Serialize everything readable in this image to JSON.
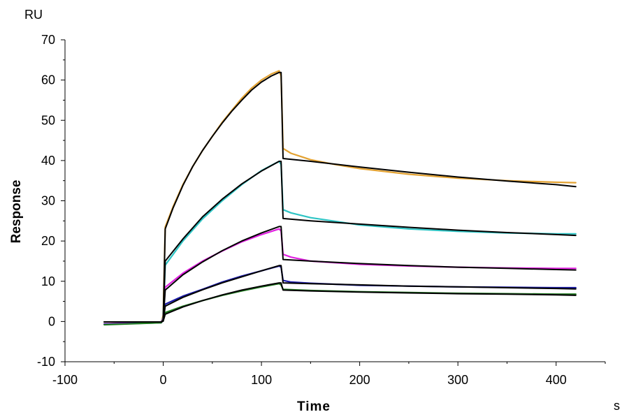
{
  "chart_data": {
    "type": "line",
    "title": "",
    "xlabel": "Time",
    "ylabel": "Response",
    "x_unit": "s",
    "y_unit": "RU",
    "xlim": [
      -100,
      450
    ],
    "ylim": [
      -10,
      70
    ],
    "x_ticks": [
      -100,
      0,
      100,
      200,
      300,
      400
    ],
    "y_ticks": [
      -10,
      0,
      10,
      20,
      30,
      40,
      50,
      60,
      70
    ],
    "grid": false,
    "legend": "none",
    "series": [
      {
        "color": "#E3A232",
        "role": "measured",
        "points": [
          [
            -60,
            -0.6
          ],
          [
            -40,
            -0.4
          ],
          [
            -20,
            -0.3
          ],
          [
            -2,
            -0.2
          ],
          [
            0,
            1.5
          ],
          [
            2,
            23.5
          ],
          [
            10,
            28.5
          ],
          [
            20,
            34
          ],
          [
            30,
            38.5
          ],
          [
            40,
            42.5
          ],
          [
            50,
            46
          ],
          [
            60,
            49.5
          ],
          [
            70,
            52.5
          ],
          [
            80,
            55.5
          ],
          [
            90,
            58
          ],
          [
            100,
            60
          ],
          [
            110,
            61.5
          ],
          [
            118,
            62.3
          ],
          [
            120,
            61
          ],
          [
            122,
            43
          ],
          [
            130,
            41.8
          ],
          [
            140,
            41
          ],
          [
            150,
            40.2
          ],
          [
            175,
            39
          ],
          [
            200,
            38
          ],
          [
            250,
            36.6
          ],
          [
            300,
            35.6
          ],
          [
            350,
            35
          ],
          [
            400,
            34.6
          ],
          [
            420,
            34.5
          ]
        ]
      },
      {
        "color": "#000000",
        "role": "fit",
        "points": [
          [
            -60,
            -0.1
          ],
          [
            -2,
            -0.1
          ],
          [
            0,
            0.2
          ],
          [
            2,
            23
          ],
          [
            10,
            28.2
          ],
          [
            20,
            33.8
          ],
          [
            30,
            38.5
          ],
          [
            40,
            42.5
          ],
          [
            50,
            46
          ],
          [
            60,
            49.3
          ],
          [
            70,
            52.3
          ],
          [
            80,
            55
          ],
          [
            90,
            57.5
          ],
          [
            100,
            59.5
          ],
          [
            110,
            61
          ],
          [
            118,
            61.9
          ],
          [
            120,
            61.9
          ],
          [
            122,
            40.5
          ],
          [
            150,
            39.8
          ],
          [
            200,
            38.4
          ],
          [
            250,
            37.1
          ],
          [
            300,
            35.9
          ],
          [
            350,
            34.9
          ],
          [
            400,
            34
          ],
          [
            420,
            33.5
          ]
        ]
      },
      {
        "color": "#2EC4C4",
        "role": "measured",
        "points": [
          [
            -60,
            -0.6
          ],
          [
            -2,
            -0.2
          ],
          [
            0,
            1
          ],
          [
            2,
            14
          ],
          [
            20,
            20
          ],
          [
            40,
            25.5
          ],
          [
            60,
            30
          ],
          [
            80,
            34
          ],
          [
            100,
            37.5
          ],
          [
            118,
            39.8
          ],
          [
            120,
            39
          ],
          [
            122,
            27.8
          ],
          [
            130,
            27
          ],
          [
            150,
            25.8
          ],
          [
            200,
            24
          ],
          [
            250,
            23
          ],
          [
            300,
            22.4
          ],
          [
            350,
            22
          ],
          [
            400,
            21.8
          ],
          [
            420,
            21.8
          ]
        ]
      },
      {
        "color": "#000000",
        "role": "fit",
        "points": [
          [
            -60,
            -0.1
          ],
          [
            -2,
            -0.1
          ],
          [
            0,
            0.2
          ],
          [
            2,
            15
          ],
          [
            20,
            20.5
          ],
          [
            40,
            26
          ],
          [
            60,
            30.4
          ],
          [
            80,
            34.2
          ],
          [
            100,
            37.4
          ],
          [
            118,
            39.8
          ],
          [
            120,
            39.8
          ],
          [
            122,
            25.6
          ],
          [
            150,
            25
          ],
          [
            200,
            24.2
          ],
          [
            250,
            23.4
          ],
          [
            300,
            22.7
          ],
          [
            350,
            22.1
          ],
          [
            400,
            21.6
          ],
          [
            420,
            21.4
          ]
        ]
      },
      {
        "color": "#E020E0",
        "role": "measured",
        "points": [
          [
            -60,
            -0.6
          ],
          [
            -2,
            -0.2
          ],
          [
            0,
            0.8
          ],
          [
            2,
            8.5
          ],
          [
            20,
            12
          ],
          [
            40,
            15
          ],
          [
            60,
            17.5
          ],
          [
            80,
            19.8
          ],
          [
            100,
            21.6
          ],
          [
            118,
            23
          ],
          [
            120,
            22.5
          ],
          [
            122,
            16.7
          ],
          [
            130,
            16
          ],
          [
            150,
            15
          ],
          [
            200,
            14.2
          ],
          [
            250,
            13.8
          ],
          [
            300,
            13.5
          ],
          [
            350,
            13.3
          ],
          [
            400,
            13.2
          ],
          [
            420,
            13.2
          ]
        ]
      },
      {
        "color": "#000000",
        "role": "fit",
        "points": [
          [
            -60,
            -0.1
          ],
          [
            -2,
            -0.1
          ],
          [
            0,
            0.1
          ],
          [
            2,
            7.8
          ],
          [
            20,
            11.6
          ],
          [
            40,
            14.8
          ],
          [
            60,
            17.6
          ],
          [
            80,
            20
          ],
          [
            100,
            22
          ],
          [
            118,
            23.6
          ],
          [
            120,
            23.6
          ],
          [
            122,
            15.4
          ],
          [
            150,
            15
          ],
          [
            200,
            14.4
          ],
          [
            250,
            13.9
          ],
          [
            300,
            13.5
          ],
          [
            350,
            13.2
          ],
          [
            400,
            12.9
          ],
          [
            420,
            12.8
          ]
        ]
      },
      {
        "color": "#1A1AA8",
        "role": "measured",
        "points": [
          [
            -60,
            -0.7
          ],
          [
            -2,
            -0.3
          ],
          [
            0,
            0.5
          ],
          [
            2,
            4.3
          ],
          [
            20,
            6.3
          ],
          [
            40,
            8
          ],
          [
            60,
            9.8
          ],
          [
            80,
            11.3
          ],
          [
            100,
            12.6
          ],
          [
            118,
            13.8
          ],
          [
            120,
            13.5
          ],
          [
            122,
            10.2
          ],
          [
            130,
            9.8
          ],
          [
            150,
            9.5
          ],
          [
            200,
            9
          ],
          [
            250,
            8.8
          ],
          [
            300,
            8.6
          ],
          [
            350,
            8.5
          ],
          [
            400,
            8.4
          ],
          [
            420,
            8.4
          ]
        ]
      },
      {
        "color": "#000000",
        "role": "fit",
        "points": [
          [
            -60,
            -0.1
          ],
          [
            -2,
            -0.1
          ],
          [
            0,
            0.1
          ],
          [
            2,
            3.8
          ],
          [
            20,
            6
          ],
          [
            40,
            7.9
          ],
          [
            60,
            9.6
          ],
          [
            80,
            11.1
          ],
          [
            100,
            12.6
          ],
          [
            118,
            13.9
          ],
          [
            120,
            13.9
          ],
          [
            122,
            9.6
          ],
          [
            150,
            9.4
          ],
          [
            200,
            9.1
          ],
          [
            250,
            8.8
          ],
          [
            300,
            8.6
          ],
          [
            350,
            8.4
          ],
          [
            400,
            8.2
          ],
          [
            420,
            8.1
          ]
        ]
      },
      {
        "color": "#1F7A1F",
        "role": "measured",
        "points": [
          [
            -60,
            -0.8
          ],
          [
            -2,
            -0.3
          ],
          [
            0,
            0.5
          ],
          [
            2,
            2.2
          ],
          [
            20,
            3.8
          ],
          [
            40,
            5.2
          ],
          [
            60,
            6.5
          ],
          [
            80,
            7.6
          ],
          [
            100,
            8.6
          ],
          [
            118,
            9.4
          ],
          [
            120,
            9.1
          ],
          [
            122,
            8
          ],
          [
            150,
            7.7
          ],
          [
            200,
            7.4
          ],
          [
            250,
            7.2
          ],
          [
            300,
            7
          ],
          [
            350,
            6.9
          ],
          [
            400,
            6.8
          ],
          [
            420,
            6.8
          ]
        ]
      },
      {
        "color": "#000000",
        "role": "fit",
        "points": [
          [
            -60,
            -0.1
          ],
          [
            -2,
            -0.1
          ],
          [
            0,
            0.1
          ],
          [
            2,
            1.8
          ],
          [
            20,
            3.6
          ],
          [
            40,
            5.2
          ],
          [
            60,
            6.6
          ],
          [
            80,
            7.8
          ],
          [
            100,
            8.8
          ],
          [
            118,
            9.6
          ],
          [
            120,
            9.6
          ],
          [
            122,
            7.8
          ],
          [
            150,
            7.6
          ],
          [
            200,
            7.3
          ],
          [
            250,
            7.1
          ],
          [
            300,
            6.9
          ],
          [
            350,
            6.8
          ],
          [
            400,
            6.6
          ],
          [
            420,
            6.5
          ]
        ]
      }
    ]
  }
}
